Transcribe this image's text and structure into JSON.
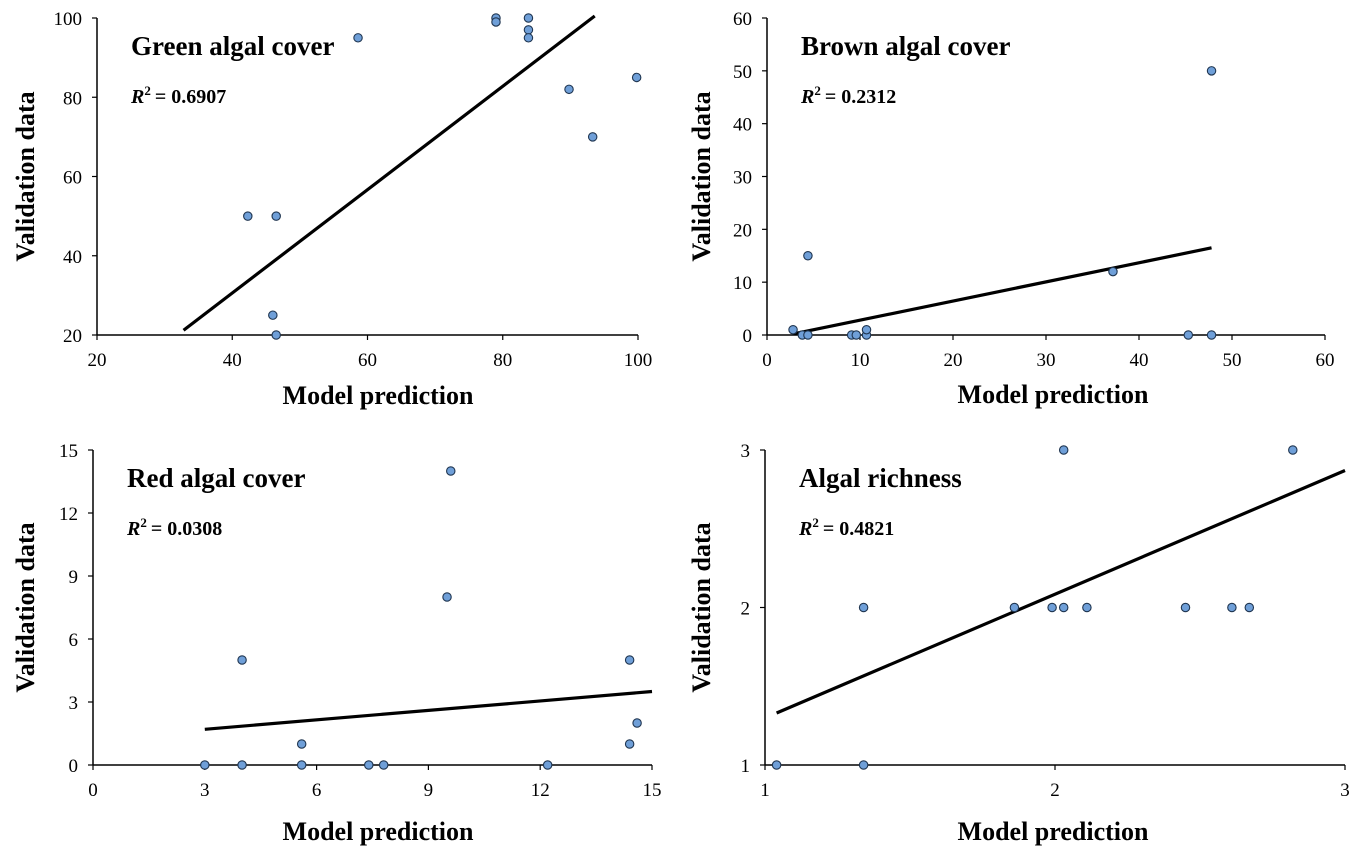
{
  "chart_data": [
    {
      "type": "scatter",
      "title": "Green algal cover",
      "annotation": {
        "label": "R",
        "exp": "2",
        "value": "= 0.6907"
      },
      "xlabel": "Model prediction",
      "ylabel": "Validation data",
      "xlim": [
        20,
        100
      ],
      "ylim": [
        20,
        100
      ],
      "xticks": [
        "20",
        "40",
        "60",
        "80",
        "100"
      ],
      "yticks": [
        "20",
        "40",
        "60",
        "80",
        "100"
      ],
      "points": [
        {
          "x": 42.3,
          "y": 50
        },
        {
          "x": 46.5,
          "y": 50
        },
        {
          "x": 46.0,
          "y": 25
        },
        {
          "x": 46.5,
          "y": 20
        },
        {
          "x": 58.6,
          "y": 95
        },
        {
          "x": 79.0,
          "y": 100
        },
        {
          "x": 79.0,
          "y": 99
        },
        {
          "x": 83.8,
          "y": 100
        },
        {
          "x": 83.8,
          "y": 97
        },
        {
          "x": 83.8,
          "y": 95
        },
        {
          "x": 89.8,
          "y": 82
        },
        {
          "x": 93.3,
          "y": 70
        },
        {
          "x": 99.8,
          "y": 85
        }
      ],
      "trendline": {
        "x0": 32.8,
        "y0": 21.2,
        "x1": 93.6,
        "y1": 100.5
      },
      "grid": false
    },
    {
      "type": "scatter",
      "title": "Brown algal cover",
      "annotation": {
        "label": "R",
        "exp": "2",
        "value": "= 0.2312"
      },
      "xlabel": "Model prediction",
      "ylabel": "Validation data",
      "xlim": [
        0,
        60
      ],
      "ylim": [
        0,
        60
      ],
      "xticks": [
        "0",
        "10",
        "20",
        "30",
        "40",
        "50",
        "60"
      ],
      "yticks": [
        "0",
        "10",
        "20",
        "30",
        "40",
        "50",
        "60"
      ],
      "points": [
        {
          "x": 2.8,
          "y": 1
        },
        {
          "x": 3.8,
          "y": 0
        },
        {
          "x": 4.4,
          "y": 0
        },
        {
          "x": 4.4,
          "y": 15
        },
        {
          "x": 9.1,
          "y": 0
        },
        {
          "x": 9.6,
          "y": 0
        },
        {
          "x": 10.7,
          "y": 0
        },
        {
          "x": 10.7,
          "y": 1
        },
        {
          "x": 37.2,
          "y": 12
        },
        {
          "x": 45.3,
          "y": 0
        },
        {
          "x": 47.8,
          "y": 0
        },
        {
          "x": 47.8,
          "y": 50
        }
      ],
      "trendline": {
        "x0": 2.8,
        "y0": 0.2,
        "x1": 47.8,
        "y1": 16.5
      },
      "grid": false
    },
    {
      "type": "scatter",
      "title": "Red algal cover",
      "annotation": {
        "label": "R",
        "exp": "2",
        "value": "= 0.0308"
      },
      "xlabel": "Model prediction",
      "ylabel": "Validation data",
      "xlim": [
        0,
        15
      ],
      "ylim": [
        0,
        15
      ],
      "xticks": [
        "0",
        "3",
        "6",
        "9",
        "12",
        "15"
      ],
      "yticks": [
        "0",
        "3",
        "6",
        "9",
        "12",
        "15"
      ],
      "points": [
        {
          "x": 3.0,
          "y": 0
        },
        {
          "x": 4.0,
          "y": 0
        },
        {
          "x": 4.0,
          "y": 5
        },
        {
          "x": 5.6,
          "y": 0
        },
        {
          "x": 5.6,
          "y": 1
        },
        {
          "x": 7.4,
          "y": 0
        },
        {
          "x": 7.8,
          "y": 0
        },
        {
          "x": 9.5,
          "y": 8
        },
        {
          "x": 9.6,
          "y": 14
        },
        {
          "x": 12.2,
          "y": 0
        },
        {
          "x": 14.4,
          "y": 5
        },
        {
          "x": 14.4,
          "y": 1
        },
        {
          "x": 14.6,
          "y": 2
        }
      ],
      "trendline": {
        "x0": 3.0,
        "y0": 1.7,
        "x1": 15.0,
        "y1": 3.5
      },
      "grid": false
    },
    {
      "type": "scatter",
      "title": "Algal richness",
      "annotation": {
        "label": "R",
        "exp": "2",
        "value": "= 0.4821"
      },
      "xlabel": "Model prediction",
      "ylabel": "Validation data",
      "xlim": [
        1,
        3
      ],
      "ylim": [
        1,
        3
      ],
      "xticks": [
        "1",
        "2",
        "3"
      ],
      "yticks": [
        "1",
        "2",
        "3"
      ],
      "points": [
        {
          "x": 1.04,
          "y": 1
        },
        {
          "x": 1.34,
          "y": 1
        },
        {
          "x": 1.34,
          "y": 2
        },
        {
          "x": 1.86,
          "y": 2
        },
        {
          "x": 1.99,
          "y": 2
        },
        {
          "x": 2.03,
          "y": 2
        },
        {
          "x": 2.03,
          "y": 3
        },
        {
          "x": 2.11,
          "y": 2
        },
        {
          "x": 2.45,
          "y": 2
        },
        {
          "x": 2.61,
          "y": 2
        },
        {
          "x": 2.67,
          "y": 2
        },
        {
          "x": 2.82,
          "y": 3
        }
      ],
      "trendline": {
        "x0": 1.04,
        "y0": 1.33,
        "x1": 3.0,
        "y1": 2.87
      },
      "grid": false
    }
  ],
  "colors": {
    "marker_fill": "#6f9fd8",
    "marker_stroke": "#1f3550",
    "trendline": "#000000",
    "axis": "#000000"
  }
}
